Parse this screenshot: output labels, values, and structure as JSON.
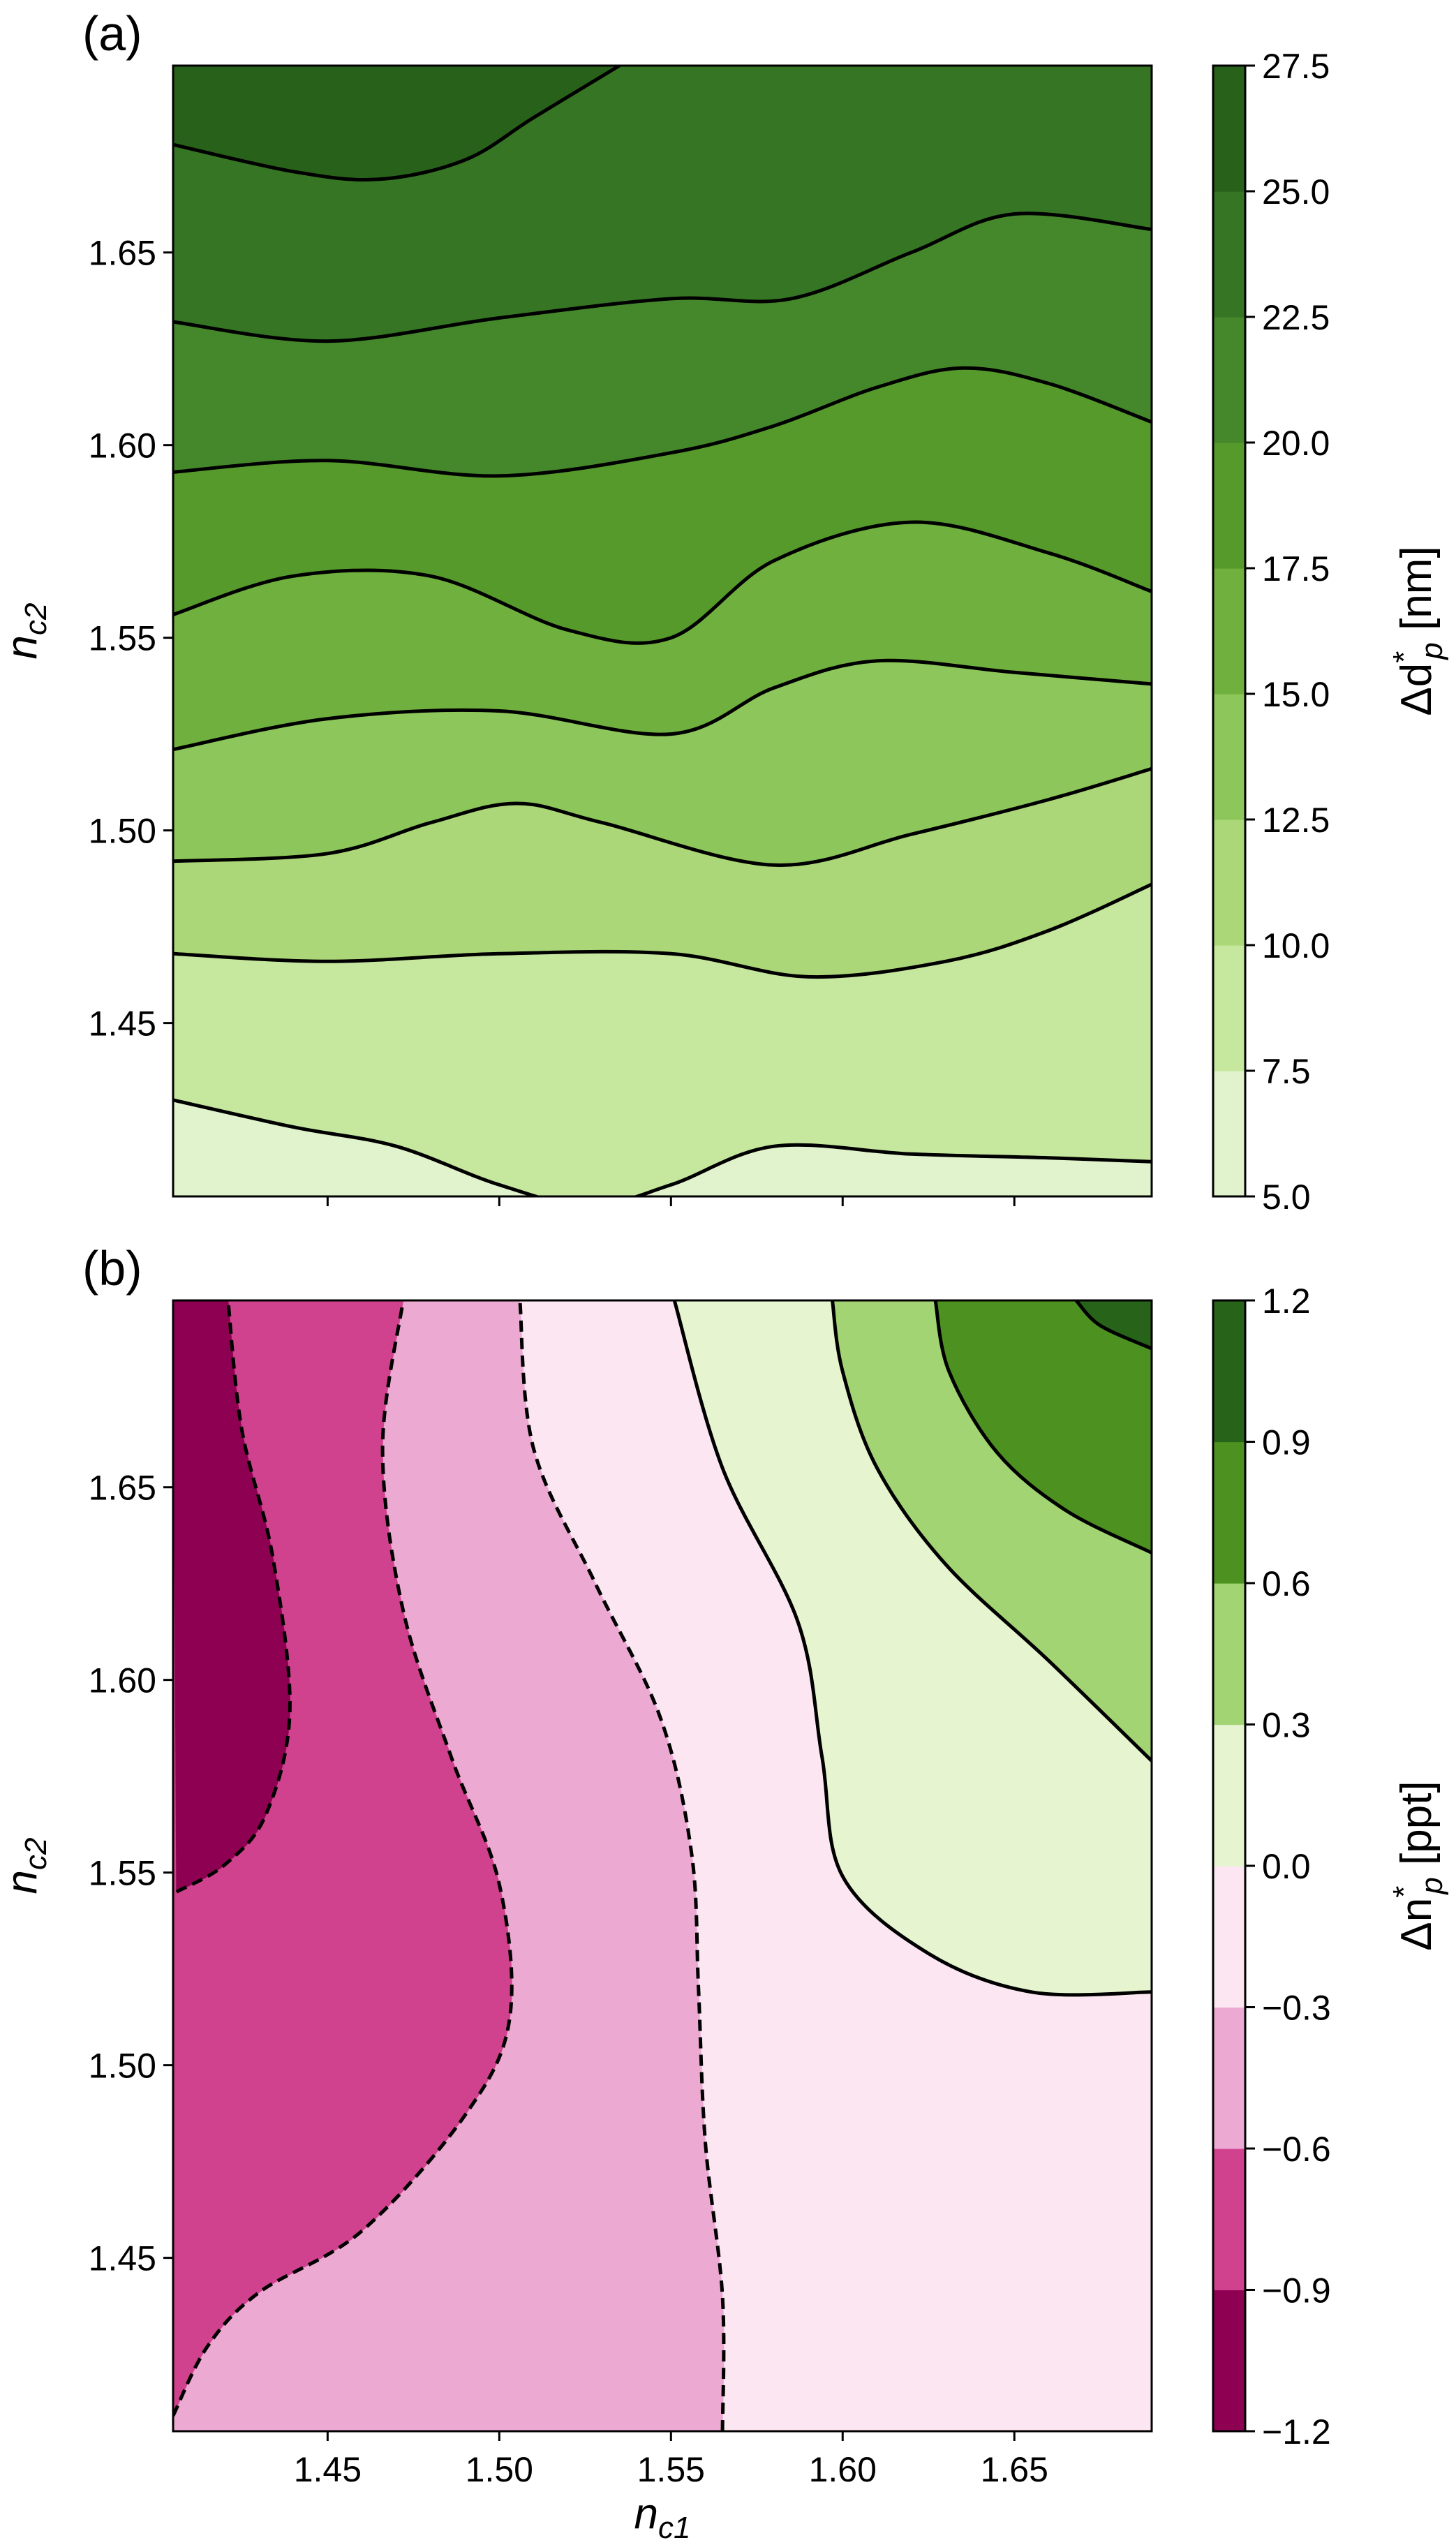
{
  "chart_data": [
    {
      "type": "contour",
      "panel_label": "(a)",
      "xlim": [
        1.405,
        1.69
      ],
      "ylim": [
        1.405,
        1.6985
      ],
      "x_ticks": [
        1.45,
        1.5,
        1.55,
        1.6,
        1.65
      ],
      "x_tick_labels_visible": false,
      "y_ticks": [
        1.45,
        1.5,
        1.55,
        1.6,
        1.65
      ],
      "y_tick_labels": [
        "1.45",
        "1.50",
        "1.55",
        "1.60",
        "1.65"
      ],
      "ylabel": {
        "base": "n",
        "sub": "c2"
      },
      "colorbar": {
        "label": {
          "prefix": "Δd",
          "sup": "*",
          "sub": "p",
          "suffix": " [nm]"
        },
        "levels": [
          5.0,
          7.5,
          10.0,
          12.5,
          15.0,
          17.5,
          20.0,
          22.5,
          25.0,
          27.5
        ],
        "tick_labels": [
          "5.0",
          "7.5",
          "10.0",
          "12.5",
          "15.0",
          "17.5",
          "20.0",
          "22.5",
          "25.0",
          "27.5"
        ],
        "colors": [
          "#e0f3cc",
          "#c6e79e",
          "#acd778",
          "#8dc75b",
          "#70b03e",
          "#569a2c",
          "#45882b",
          "#357523",
          "#28611a"
        ]
      },
      "contours": [
        {
          "level": 7.5,
          "style": "solid",
          "points": [
            [
              1.405,
              1.43
            ],
            [
              1.44,
              1.423
            ],
            [
              1.47,
              1.418
            ],
            [
              1.5,
              1.408
            ],
            [
              1.526,
              1.4025
            ],
            [
              1.55,
              1.408
            ],
            [
              1.58,
              1.418
            ],
            [
              1.62,
              1.416
            ],
            [
              1.66,
              1.415
            ],
            [
              1.69,
              1.414
            ]
          ]
        },
        {
          "level": 10.0,
          "style": "solid",
          "points": [
            [
              1.405,
              1.468
            ],
            [
              1.45,
              1.466
            ],
            [
              1.5,
              1.468
            ],
            [
              1.55,
              1.468
            ],
            [
              1.59,
              1.462
            ],
            [
              1.63,
              1.466
            ],
            [
              1.66,
              1.474
            ],
            [
              1.69,
              1.486
            ]
          ]
        },
        {
          "level": 12.5,
          "style": "solid",
          "points": [
            [
              1.405,
              1.492
            ],
            [
              1.45,
              1.494
            ],
            [
              1.48,
              1.502
            ],
            [
              1.505,
              1.507
            ],
            [
              1.53,
              1.502
            ],
            [
              1.58,
              1.491
            ],
            [
              1.62,
              1.499
            ],
            [
              1.66,
              1.508
            ],
            [
              1.69,
              1.516
            ]
          ]
        },
        {
          "level": 15.0,
          "style": "solid",
          "points": [
            [
              1.405,
              1.521
            ],
            [
              1.45,
              1.529
            ],
            [
              1.5,
              1.531
            ],
            [
              1.55,
              1.525
            ],
            [
              1.58,
              1.537
            ],
            [
              1.61,
              1.544
            ],
            [
              1.65,
              1.541
            ],
            [
              1.69,
              1.538
            ]
          ]
        },
        {
          "level": 17.5,
          "style": "solid",
          "points": [
            [
              1.405,
              1.556
            ],
            [
              1.44,
              1.566
            ],
            [
              1.48,
              1.566
            ],
            [
              1.52,
              1.552
            ],
            [
              1.55,
              1.55
            ],
            [
              1.58,
              1.57
            ],
            [
              1.62,
              1.58
            ],
            [
              1.66,
              1.572
            ],
            [
              1.69,
              1.562
            ]
          ]
        },
        {
          "level": 20.0,
          "style": "solid",
          "points": [
            [
              1.405,
              1.593
            ],
            [
              1.45,
              1.596
            ],
            [
              1.5,
              1.592
            ],
            [
              1.55,
              1.598
            ],
            [
              1.58,
              1.605
            ],
            [
              1.61,
              1.615
            ],
            [
              1.635,
              1.62
            ],
            [
              1.66,
              1.616
            ],
            [
              1.69,
              1.606
            ]
          ]
        },
        {
          "level": 22.5,
          "style": "solid",
          "points": [
            [
              1.405,
              1.632
            ],
            [
              1.45,
              1.627
            ],
            [
              1.5,
              1.633
            ],
            [
              1.55,
              1.638
            ],
            [
              1.585,
              1.638
            ],
            [
              1.62,
              1.65
            ],
            [
              1.65,
              1.66
            ],
            [
              1.69,
              1.656
            ]
          ]
        },
        {
          "level": 25.0,
          "style": "solid",
          "points": [
            [
              1.405,
              1.678
            ],
            [
              1.44,
              1.671
            ],
            [
              1.465,
              1.669
            ],
            [
              1.49,
              1.674
            ],
            [
              1.51,
              1.685
            ],
            [
              1.535,
              1.6985
            ]
          ]
        }
      ]
    },
    {
      "type": "contour",
      "panel_label": "(b)",
      "xlim": [
        1.405,
        1.69
      ],
      "ylim": [
        1.405,
        1.6985
      ],
      "x_ticks": [
        1.45,
        1.5,
        1.55,
        1.6,
        1.65
      ],
      "x_tick_labels": [
        "1.45",
        "1.50",
        "1.55",
        "1.60",
        "1.65"
      ],
      "y_ticks": [
        1.45,
        1.5,
        1.55,
        1.6,
        1.65
      ],
      "y_tick_labels": [
        "1.45",
        "1.50",
        "1.55",
        "1.60",
        "1.65"
      ],
      "xlabel": {
        "base": "n",
        "sub": "c1"
      },
      "ylabel": {
        "base": "n",
        "sub": "c2"
      },
      "colorbar": {
        "label": {
          "prefix": "Δn",
          "sup": "*",
          "sub": "p",
          "suffix": " [ppt]"
        },
        "levels": [
          -1.2,
          -0.9,
          -0.6,
          -0.3,
          0.0,
          0.3,
          0.6,
          0.9,
          1.2
        ],
        "tick_labels": [
          "−1.2",
          "−0.9",
          "−0.6",
          "−0.3",
          "0.0",
          "0.3",
          "0.6",
          "0.9",
          "1.2"
        ],
        "colors": [
          "#8e0152",
          "#d0428e",
          "#ecaad3",
          "#fbe6f1",
          "#e6f5d0",
          "#a2d473",
          "#4d9221",
          "#276419"
        ]
      },
      "contours": [
        {
          "level": -0.9,
          "style": "dashed",
          "points": [
            [
              1.406,
              1.545
            ],
            [
              1.42,
              1.552
            ],
            [
              1.432,
              1.565
            ],
            [
              1.439,
              1.592
            ],
            [
              1.434,
              1.632
            ],
            [
              1.425,
              1.665
            ],
            [
              1.421,
              1.6985
            ]
          ]
        },
        {
          "level": -0.6,
          "style": "dashed",
          "points": [
            [
              1.405,
              1.409
            ],
            [
              1.415,
              1.427
            ],
            [
              1.43,
              1.441
            ],
            [
              1.46,
              1.457
            ],
            [
              1.49,
              1.487
            ],
            [
              1.503,
              1.512
            ],
            [
              1.5,
              1.547
            ],
            [
              1.486,
              1.58
            ],
            [
              1.472,
              1.618
            ],
            [
              1.466,
              1.66
            ],
            [
              1.472,
              1.6985
            ]
          ]
        },
        {
          "level": -0.3,
          "style": "dashed",
          "points": [
            [
              1.565,
              1.405
            ],
            [
              1.565,
              1.44
            ],
            [
              1.56,
              1.48
            ],
            [
              1.558,
              1.52
            ],
            [
              1.556,
              1.555
            ],
            [
              1.547,
              1.59
            ],
            [
              1.528,
              1.625
            ],
            [
              1.51,
              1.66
            ],
            [
              1.506,
              1.6985
            ]
          ]
        },
        {
          "level": 0.0,
          "style": "solid",
          "points": [
            [
              1.69,
              1.519
            ],
            [
              1.655,
              1.519
            ],
            [
              1.625,
              1.529
            ],
            [
              1.6,
              1.549
            ],
            [
              1.594,
              1.58
            ],
            [
              1.587,
              1.615
            ],
            [
              1.565,
              1.655
            ],
            [
              1.551,
              1.6985
            ]
          ]
        },
        {
          "level": 0.3,
          "style": "solid",
          "points": [
            [
              1.69,
              1.579
            ],
            [
              1.66,
              1.605
            ],
            [
              1.63,
              1.63
            ],
            [
              1.61,
              1.655
            ],
            [
              1.6,
              1.68
            ],
            [
              1.597,
              1.6985
            ]
          ]
        },
        {
          "level": 0.6,
          "style": "solid",
          "points": [
            [
              1.69,
              1.633
            ],
            [
              1.665,
              1.644
            ],
            [
              1.645,
              1.659
            ],
            [
              1.631,
              1.68
            ],
            [
              1.627,
              1.6985
            ]
          ]
        },
        {
          "level": 0.9,
          "style": "solid",
          "points": [
            [
              1.69,
              1.686
            ],
            [
              1.675,
              1.692
            ],
            [
              1.668,
              1.6985
            ]
          ]
        }
      ]
    }
  ]
}
